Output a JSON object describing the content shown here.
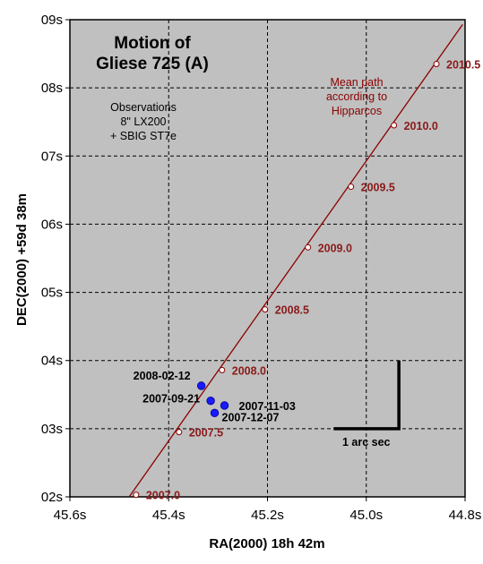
{
  "chart_data": {
    "type": "scatter",
    "title": [
      "Motion of",
      "Gliese 725 (A)"
    ],
    "xlabel": "RA(2000) 18h 42m",
    "ylabel": "DEC(2000) +59d 38m",
    "x_axis": {
      "unit": "RA seconds",
      "reversed": true,
      "range": [
        45.6,
        44.8
      ],
      "ticks": [
        45.6,
        45.4,
        45.2,
        45.0,
        44.8
      ],
      "tick_labels": [
        "45.6s",
        "45.4s",
        "45.2s",
        "45.0s",
        "44.8s"
      ]
    },
    "y_axis": {
      "unit": "DEC arcseconds",
      "range": [
        2,
        9
      ],
      "ticks": [
        2,
        3,
        4,
        5,
        6,
        7,
        8,
        9
      ],
      "tick_labels": [
        "02s",
        "03s",
        "04s",
        "05s",
        "06s",
        "07s",
        "08s",
        "09s"
      ]
    },
    "grid": true,
    "background_color": "#c0c0c0",
    "annotations": {
      "instrument": [
        "Observations",
        "8\" LX200",
        "+ SBIG ST7e"
      ],
      "path_note": [
        "Mean path",
        "according to",
        "Hipparcos"
      ]
    },
    "series": [
      {
        "name": "Mean path according to Hipparcos",
        "kind": "line",
        "color": "#8b0000",
        "x": [
          45.48,
          44.805
        ],
        "y": [
          2.0,
          8.93
        ]
      },
      {
        "name": "Mean path according to Hipparcos",
        "kind": "epoch-markers",
        "color": "#8b0000",
        "points": [
          {
            "label": "2007.0",
            "x": 45.466,
            "y": 2.03
          },
          {
            "label": "2007.5",
            "x": 45.379,
            "y": 2.95
          },
          {
            "label": "2008.0",
            "x": 45.292,
            "y": 3.86
          },
          {
            "label": "2008.5",
            "x": 45.205,
            "y": 4.75
          },
          {
            "label": "2009.0",
            "x": 45.118,
            "y": 5.66
          },
          {
            "label": "2009.5",
            "x": 45.031,
            "y": 6.55
          },
          {
            "label": "2010.0",
            "x": 44.944,
            "y": 7.45
          },
          {
            "label": "2010.5",
            "x": 44.858,
            "y": 8.35
          }
        ]
      },
      {
        "name": "Observations",
        "kind": "points",
        "color": "#1a1aff",
        "points": [
          {
            "label": "2008-02-12",
            "x": 45.334,
            "y": 3.63
          },
          {
            "label": "2007-09-21",
            "x": 45.315,
            "y": 3.41
          },
          {
            "label": "2007-11-03",
            "x": 45.287,
            "y": 3.34
          },
          {
            "label": "2007-12-07",
            "x": 45.307,
            "y": 3.23
          }
        ]
      }
    ],
    "scale_bar": {
      "label": "1 arc sec",
      "ra_from": 45.066,
      "ra_to": 44.934,
      "dec_from": 3.0,
      "dec_to": 4.0
    }
  }
}
